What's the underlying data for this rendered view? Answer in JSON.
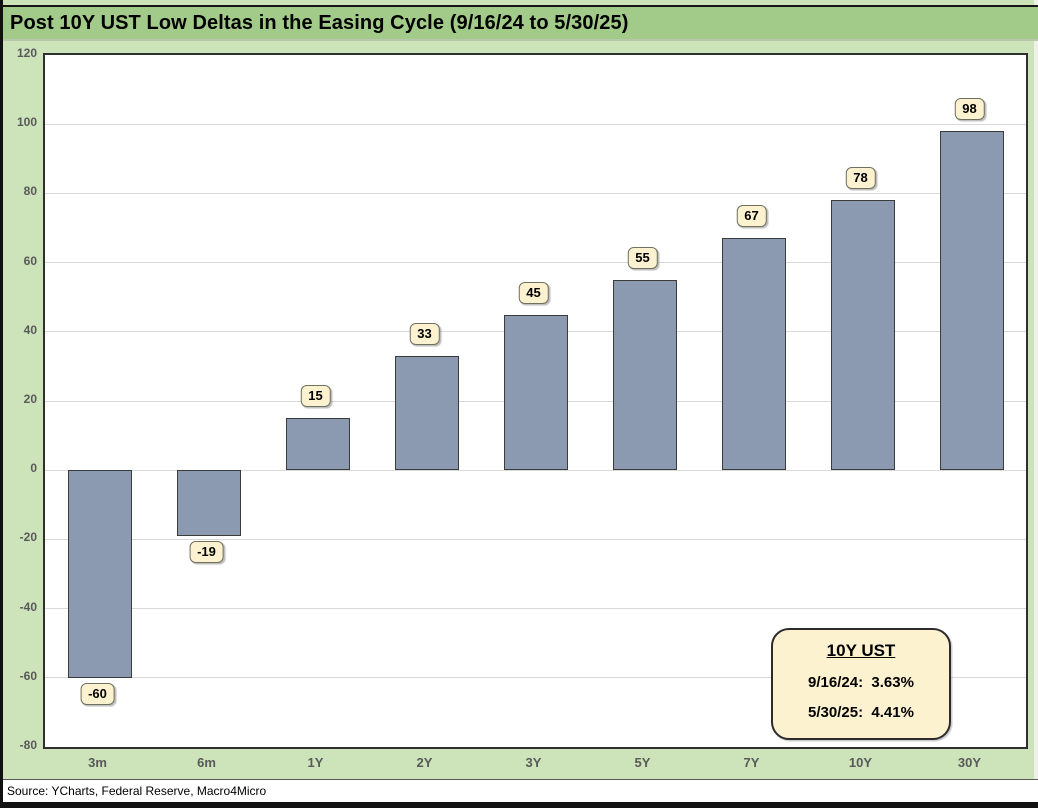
{
  "title": "Post 10Y UST Low Deltas in the Easing Cycle (9/16/24 to 5/30/25)",
  "source_note": "Source: YCharts, Federal Reserve, Macro4Micro",
  "legend": {
    "heading": "10Y UST",
    "line1": "9/16/24:  3.63%",
    "line2": "5/30/25:  4.41%"
  },
  "colors": {
    "background_green": "#cde4ba",
    "title_bar_green": "#a2ca89",
    "bar_fill": "#8b9ab1",
    "bar_border": "#3b3b3b",
    "gridline": "#d9d9d9",
    "plot_border": "#2f2f2f",
    "plot_background": "#ffffff",
    "tick_text": "#595959",
    "label_box_fill": "#fcf2d0",
    "label_box_border": "#70705f",
    "legend_fill": "#fcf2d0",
    "legend_border": "#2c2c2c"
  },
  "chart_data": {
    "type": "bar",
    "title": "Post 10Y UST Low Deltas in the Easing Cycle (9/16/24 to 5/30/25)",
    "categories": [
      "3m",
      "6m",
      "1Y",
      "2Y",
      "3Y",
      "5Y",
      "7Y",
      "10Y",
      "30Y"
    ],
    "values": [
      -60,
      -19,
      15,
      33,
      45,
      55,
      67,
      78,
      98
    ],
    "xlabel": "",
    "ylabel": "",
    "ylim": [
      -80,
      120
    ],
    "ytick_interval": 20,
    "yticks": [
      120,
      100,
      80,
      60,
      40,
      20,
      0,
      -20,
      -40,
      -60,
      -80
    ],
    "grid": true,
    "data_labels": true,
    "legend_position": "bottom-right",
    "annotation": [
      "10Y UST",
      "9/16/24:  3.63%",
      "5/30/25:  4.41%"
    ]
  }
}
